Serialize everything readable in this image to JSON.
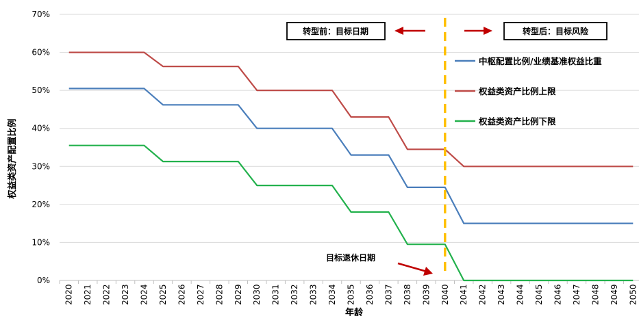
{
  "chart_data": {
    "type": "line",
    "title": "",
    "xlabel": "年龄",
    "ylabel": "权益类资产配置比例",
    "ylim": [
      0,
      70
    ],
    "y_unit": "%",
    "y_ticks": [
      "0%",
      "10%",
      "20%",
      "30%",
      "40%",
      "50%",
      "60%",
      "70%"
    ],
    "x": [
      2020,
      2021,
      2022,
      2023,
      2024,
      2025,
      2026,
      2027,
      2028,
      2029,
      2030,
      2031,
      2032,
      2033,
      2034,
      2035,
      2036,
      2037,
      2038,
      2039,
      2040,
      2041,
      2042,
      2043,
      2044,
      2045,
      2046,
      2047,
      2048,
      2049,
      2050
    ],
    "grid": "horizontal",
    "legend_position": "right",
    "series": [
      {
        "name": "中枢配置比例/业绩基准权益比重",
        "color": "#4a7ebb",
        "values": [
          50.5,
          50.5,
          50.5,
          50.5,
          50.5,
          46.2,
          46.2,
          46.2,
          46.2,
          46.2,
          40,
          40,
          40,
          40,
          40,
          33,
          33,
          33,
          24.5,
          24.5,
          24.5,
          15,
          15,
          15,
          15,
          15,
          15,
          15,
          15,
          15,
          15
        ]
      },
      {
        "name": "权益类资产比例上限",
        "color": "#be4b48",
        "values": [
          60,
          60,
          60,
          60,
          60,
          56.3,
          56.3,
          56.3,
          56.3,
          56.3,
          50,
          50,
          50,
          50,
          50,
          43,
          43,
          43,
          34.5,
          34.5,
          34.5,
          30,
          30,
          30,
          30,
          30,
          30,
          30,
          30,
          30,
          30
        ]
      },
      {
        "name": "权益类资产比例下限",
        "color": "#22b14c",
        "values": [
          35.5,
          35.5,
          35.5,
          35.5,
          35.5,
          31.3,
          31.3,
          31.3,
          31.3,
          31.3,
          25,
          25,
          25,
          25,
          25,
          18,
          18,
          18,
          9.5,
          9.5,
          9.5,
          0,
          0,
          0,
          0,
          0,
          0,
          0,
          0,
          0,
          0
        ]
      }
    ],
    "reference_line": {
      "x": 2040,
      "color": "#ffc000",
      "style": "dashed"
    },
    "annotations": {
      "before_label": "转型前：目标日期",
      "after_label": "转型后：目标风险",
      "retire_label": "目标退休日期",
      "arrow_color": "#c00000"
    }
  }
}
